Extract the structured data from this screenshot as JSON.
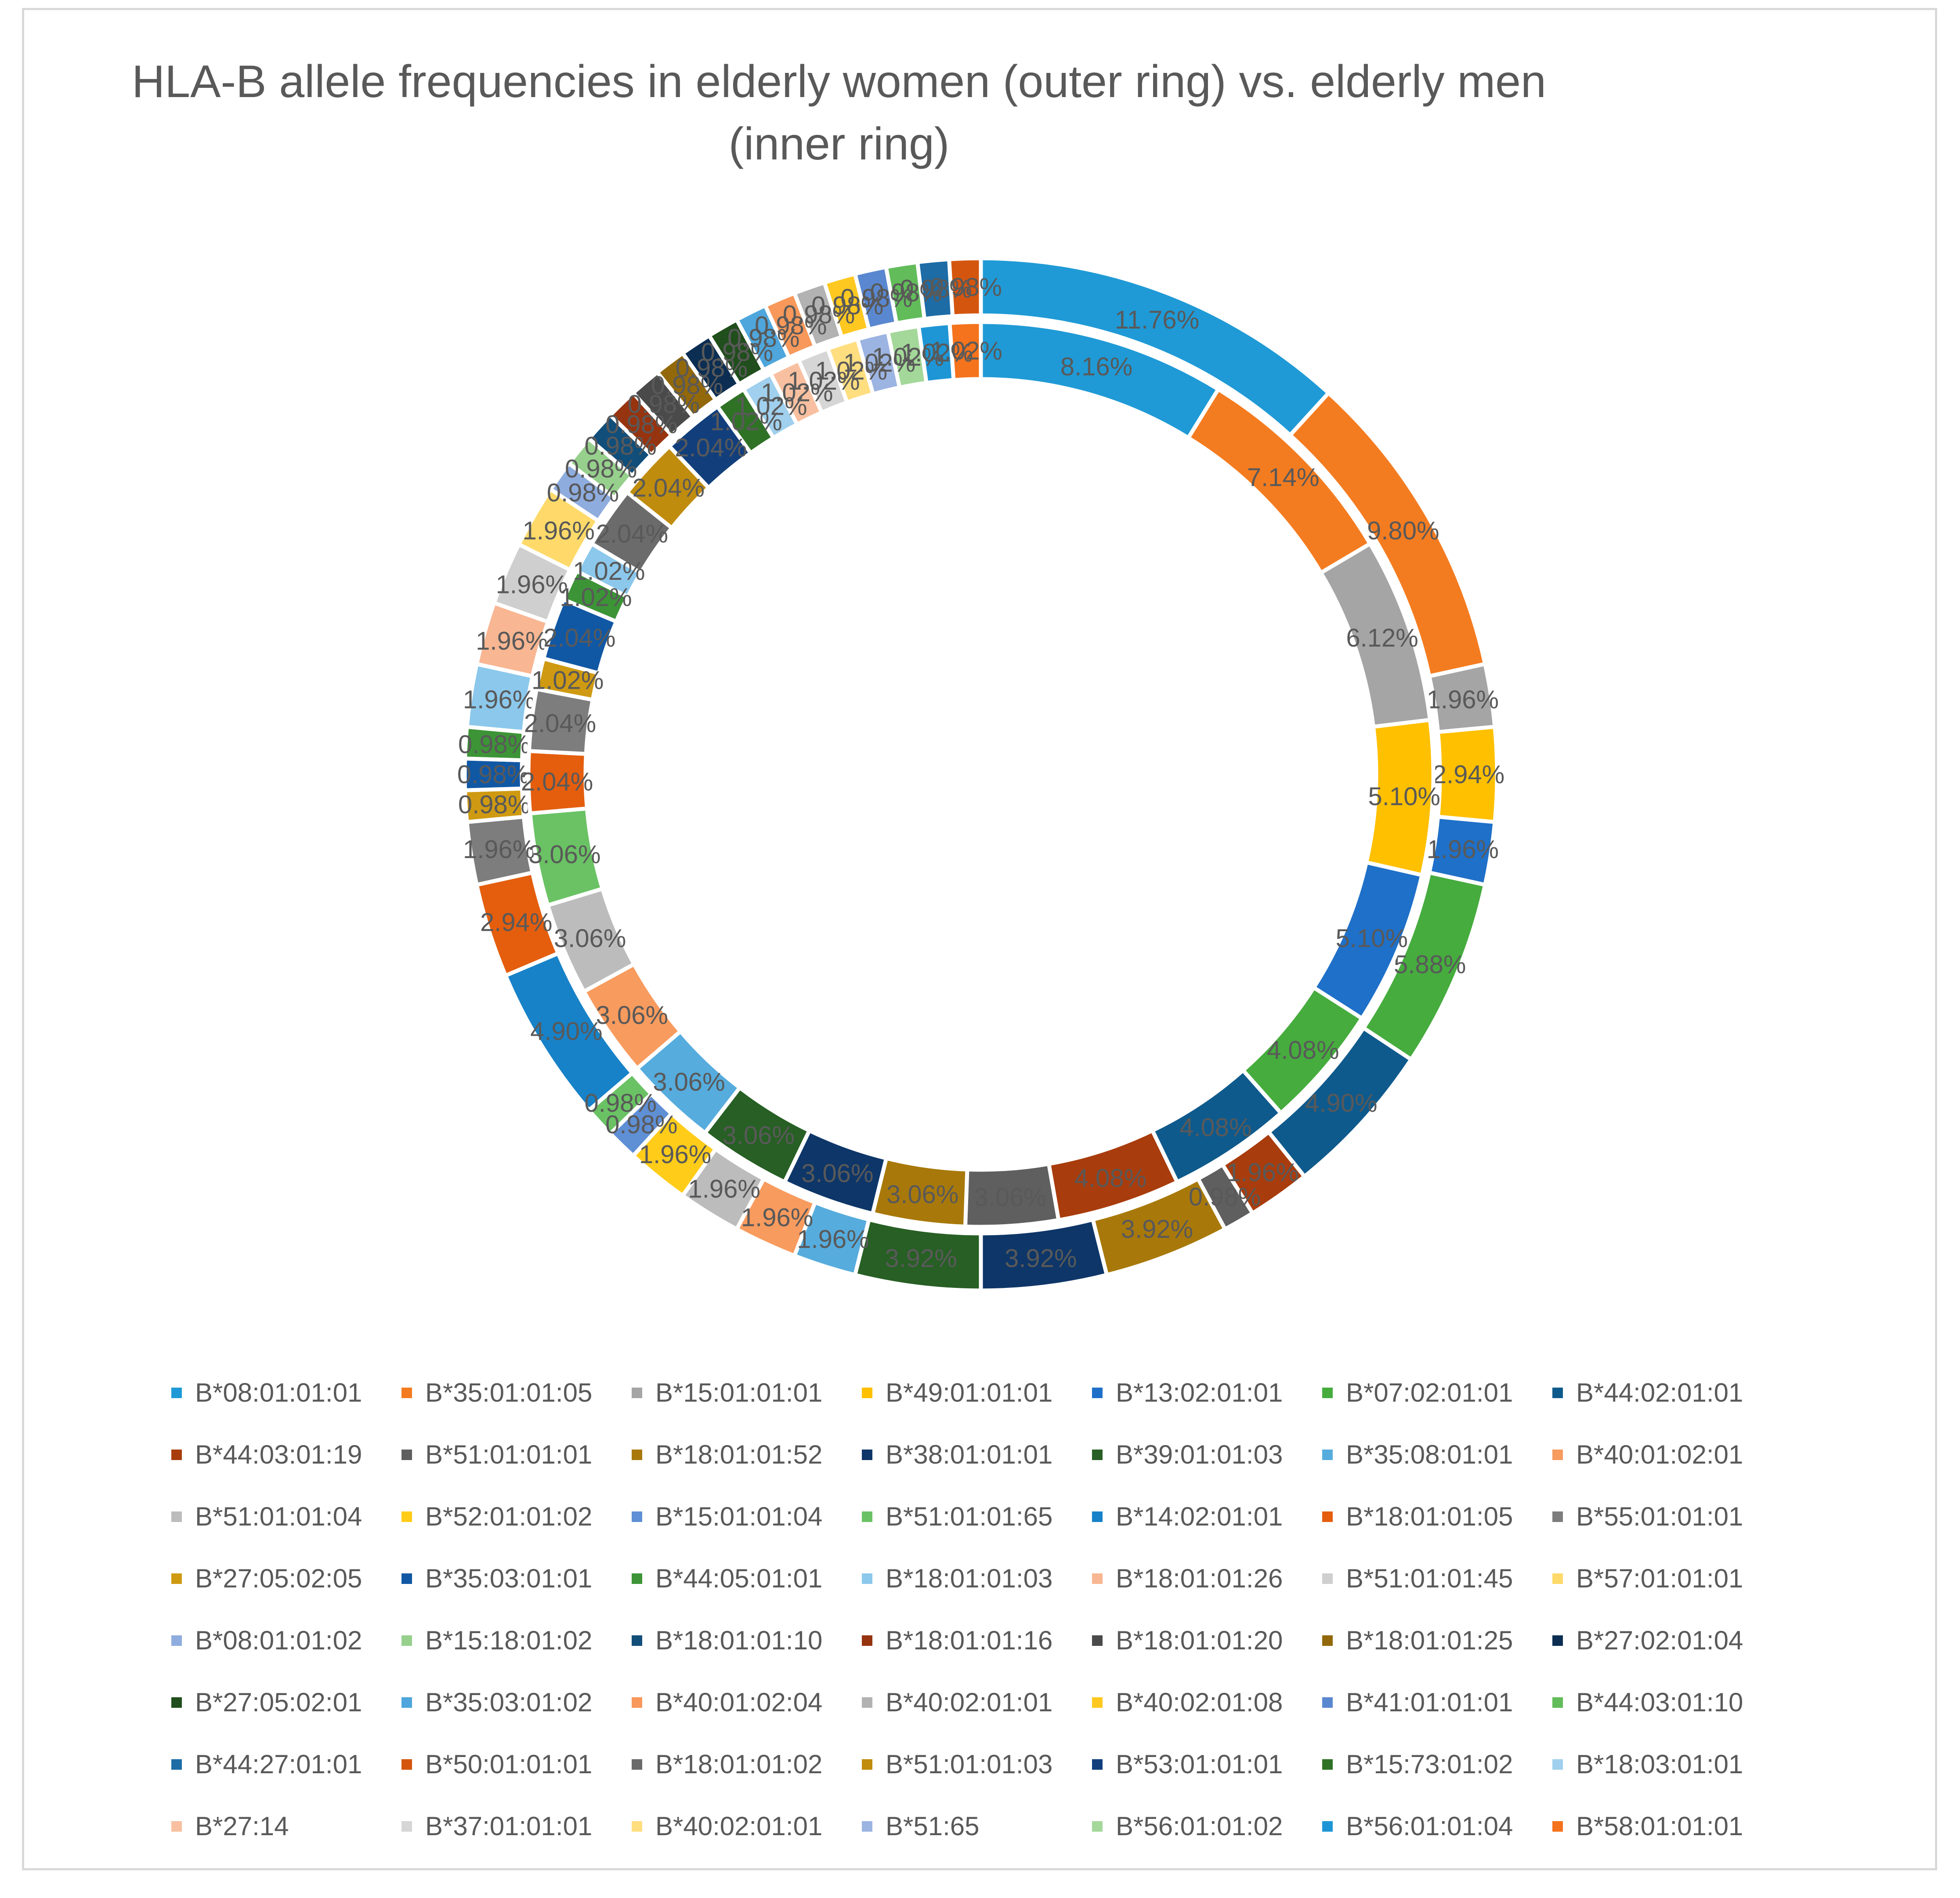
{
  "chart_data": {
    "type": "donut",
    "title": "HLA-B allele frequencies in elderly women (outer ring) vs. elderly men (inner ring)",
    "legend_position": "bottom",
    "categories": [
      "B*08:01:01:01",
      "B*35:01:01:05",
      "B*15:01:01:01",
      "B*49:01:01:01",
      "B*13:02:01:01",
      "B*07:02:01:01",
      "B*44:02:01:01",
      "B*44:03:01:19",
      "B*51:01:01:01",
      "B*18:01:01:52",
      "B*38:01:01:01",
      "B*39:01:01:03",
      "B*35:08:01:01",
      "B*40:01:02:01",
      "B*51:01:01:04",
      "B*52:01:01:02",
      "B*15:01:01:04",
      "B*51:01:01:65",
      "B*14:02:01:01",
      "B*18:01:01:05",
      "B*55:01:01:01",
      "B*27:05:02:05",
      "B*35:03:01:01",
      "B*44:05:01:01",
      "B*18:01:01:03",
      "B*18:01:01:26",
      "B*51:01:01:45",
      "B*57:01:01:01",
      "B*08:01:01:02",
      "B*15:18:01:02",
      "B*18:01:01:10",
      "B*18:01:01:16",
      "B*18:01:01:20",
      "B*18:01:01:25",
      "B*27:02:01:04",
      "B*27:05:02:01",
      "B*35:03:01:02",
      "B*40:01:02:04",
      "B*40:02:01:01",
      "B*40:02:01:08",
      "B*41:01:01:01",
      "B*44:03:01:10",
      "B*44:27:01:01",
      "B*50:01:01:01",
      "B*18:01:01:02",
      "B*51:01:01:03",
      "B*53:01:01:01",
      "B*15:73:01:02",
      "B*18:03:01:01",
      "B*27:14",
      "B*37:01:01:01",
      "B*40:02:01:01",
      "B*51:65",
      "B*56:01:01:02",
      "B*56:01:01:04",
      "B*58:01:01:01"
    ],
    "colors": [
      "#1f9ad6",
      "#f47c20",
      "#a5a5a5",
      "#ffc000",
      "#1f70c8",
      "#46ac3e",
      "#0f5a8c",
      "#a83c0c",
      "#5f5f5f",
      "#a8790a",
      "#0e3668",
      "#275f24",
      "#56acdd",
      "#f89b5e",
      "#bcbcbc",
      "#ffcc1a",
      "#5f8fd4",
      "#6ac264",
      "#1782c8",
      "#e45e0e",
      "#7d7d7d",
      "#cf9a12",
      "#1158a4",
      "#3c9436",
      "#8cc8ec",
      "#f8b692",
      "#cfcfcf",
      "#ffda6a",
      "#8eacde",
      "#96d08c",
      "#124e7a",
      "#963410",
      "#4a4a4a",
      "#92680a",
      "#0b2e52",
      "#204e1c",
      "#4ea6dc",
      "#f8985a",
      "#b2b2b2",
      "#ffc820",
      "#5a88d0",
      "#62bc5a",
      "#1d6ca6",
      "#d4560e",
      "#6b6b6b",
      "#c08c0e",
      "#123f7c",
      "#2f7226",
      "#a0d0ee",
      "#f8c0a0",
      "#d6d6d6",
      "#ffde80",
      "#9cb4e2",
      "#a4d89a",
      "#1e96d6",
      "#f4731c"
    ],
    "series": [
      {
        "name": "elderly women (outer ring)",
        "values": [
          11.76,
          9.8,
          1.96,
          2.94,
          1.96,
          5.88,
          4.9,
          1.96,
          0.98,
          3.92,
          3.92,
          3.92,
          1.96,
          1.96,
          1.96,
          1.96,
          0.98,
          0.98,
          4.9,
          2.94,
          1.96,
          0.98,
          0.98,
          0.98,
          1.96,
          1.96,
          1.96,
          1.96,
          0.98,
          0.98,
          0.98,
          0.98,
          0.98,
          0.98,
          0.98,
          0.98,
          0.98,
          0.98,
          0.98,
          0.98,
          0.98,
          0.98,
          0.98,
          0.98,
          0,
          0,
          0,
          0,
          0,
          0,
          0,
          0,
          0,
          0,
          0,
          0
        ],
        "labels": [
          "11.76%",
          "9.80%",
          "1.96%",
          "2.94%",
          "1.96%",
          "5.88%",
          "4.90%",
          "1.96%",
          "0.98%",
          "3.92%",
          "3.92%",
          "3.92%",
          "1.96%",
          "1.96%",
          "1.96%",
          "1.96%",
          "0.98%",
          "0.98%",
          "4.90%",
          "2.94%",
          "1.96%",
          "0.98%",
          "0.98%",
          "0.98%",
          "1.96%",
          "1.96%",
          "1.96%",
          "1.96%",
          "0.98%",
          "0.98%",
          "0.98%",
          "0.98%",
          "0.98%",
          "0.98%",
          "0.98%",
          "0.98%",
          "0.98%",
          "0.98%",
          "0.98%",
          "0.98%",
          "0.98%",
          "0.98%",
          "0.98%",
          "0.98%",
          "",
          "",
          "",
          "",
          "",
          "",
          "",
          "",
          "",
          "",
          "",
          ""
        ]
      },
      {
        "name": "elderly men (inner ring)",
        "values": [
          8.16,
          7.14,
          6.12,
          5.1,
          5.1,
          4.08,
          4.08,
          4.08,
          3.06,
          3.06,
          3.06,
          3.06,
          3.06,
          3.06,
          3.06,
          0,
          0,
          3.06,
          0,
          2.04,
          2.04,
          1.02,
          2.04,
          1.02,
          1.02,
          0,
          0,
          0,
          0,
          0,
          0,
          0,
          0,
          0,
          0,
          0,
          0,
          0,
          0,
          0,
          0,
          0,
          0,
          0,
          2.04,
          2.04,
          2.04,
          1.02,
          1.02,
          1.02,
          1.02,
          1.02,
          1.02,
          1.02,
          1.02,
          1.02
        ],
        "labels": [
          "8.16%",
          "7.14%",
          "6.12%",
          "5.10%",
          "5.10%",
          "4.08%",
          "4.08%",
          "4.08%",
          "3.06%",
          "3.06%",
          "3.06%",
          "3.06%",
          "3.06%",
          "3.06%",
          "3.06%",
          "",
          "",
          "3.06%",
          "",
          "2.04%",
          "2.04%",
          "1.02%",
          "2.04%",
          "1.02%",
          "1.02%",
          "",
          "",
          "",
          "",
          "",
          "",
          "",
          "",
          "",
          "",
          "",
          "",
          "",
          "",
          "",
          "",
          "",
          "",
          "",
          "2.04%",
          "2.04%",
          "2.04%",
          "1.02%",
          "1.02%",
          "1.02%",
          "1.02%",
          "1.02%",
          "1.02%",
          "1.02%",
          "1.02%",
          "1.02%"
        ]
      }
    ]
  }
}
